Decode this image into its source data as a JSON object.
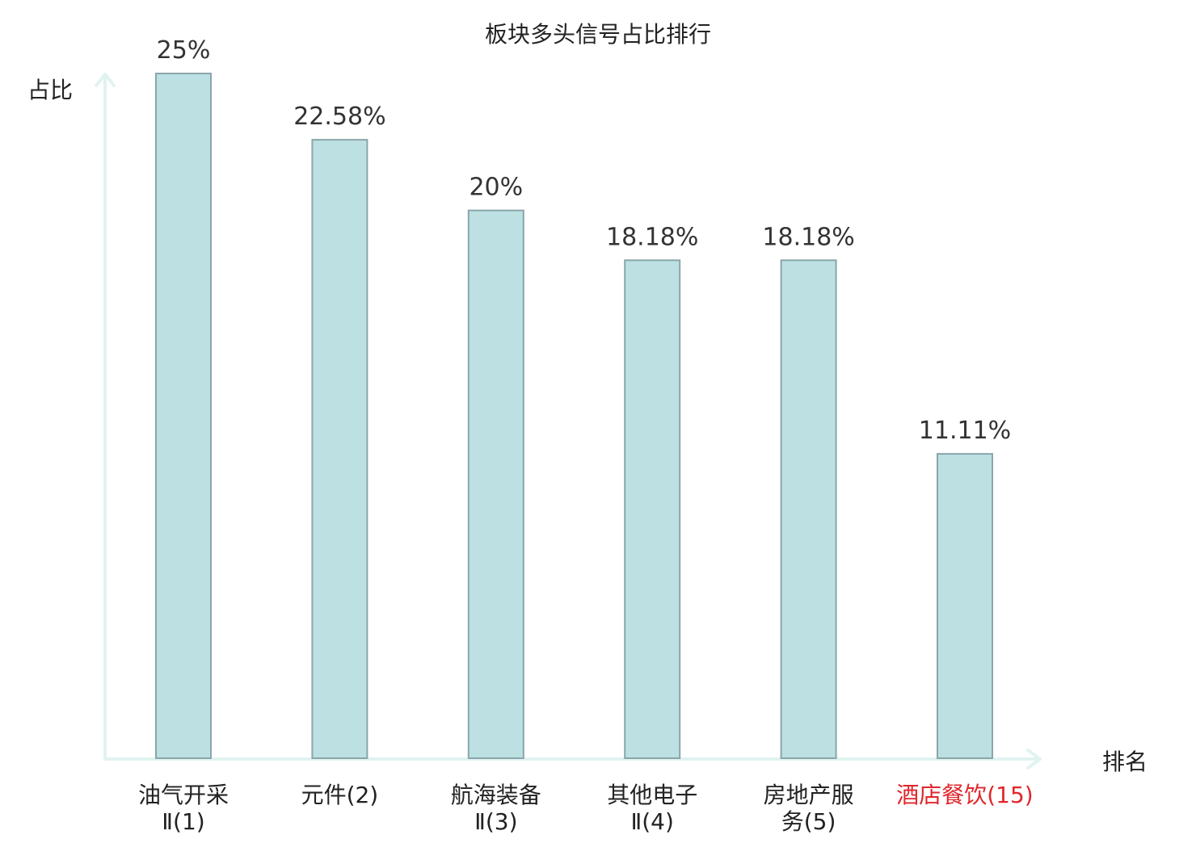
{
  "chart_data": {
    "type": "bar",
    "title": "板块多头信号占比排行",
    "ylabel": "占比",
    "xlabel": "排名",
    "ylim": [
      0,
      25
    ],
    "grid": false,
    "categories": [
      {
        "lines": [
          "油气开采",
          "Ⅱ(1)"
        ],
        "highlight": false
      },
      {
        "lines": [
          "元件(2)"
        ],
        "highlight": false
      },
      {
        "lines": [
          "航海装备",
          "Ⅱ(3)"
        ],
        "highlight": false
      },
      {
        "lines": [
          "其他电子",
          "Ⅱ(4)"
        ],
        "highlight": false
      },
      {
        "lines": [
          "房地产服",
          "务(5)"
        ],
        "highlight": false
      },
      {
        "lines": [
          "酒店餐饮(15)"
        ],
        "highlight": true
      }
    ],
    "values": [
      25,
      22.58,
      20,
      18.18,
      18.18,
      11.11
    ],
    "value_labels": [
      "25%",
      "22.58%",
      "20%",
      "18.18%",
      "18.18%",
      "11.11%"
    ]
  },
  "colors": {
    "bar_fill": "#bde0e3",
    "bar_stroke": "#8aa6aa",
    "axis": "#e1f3f1",
    "text": "#222222",
    "value_text": "#333333",
    "highlight": "#e0262c"
  }
}
